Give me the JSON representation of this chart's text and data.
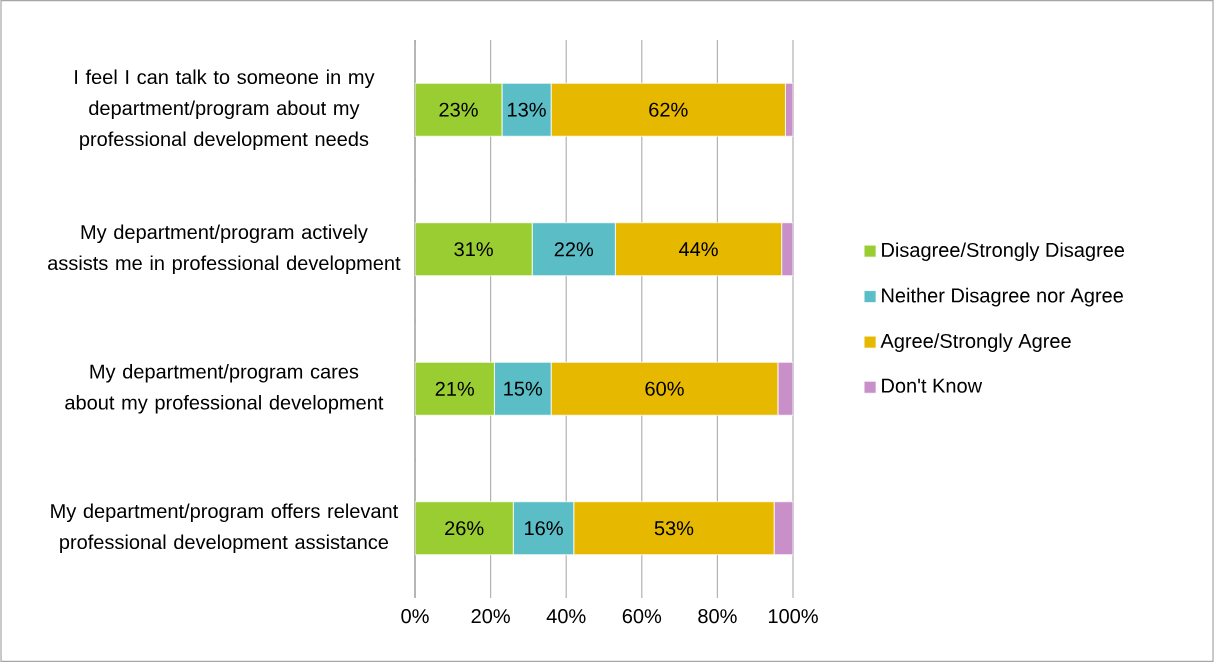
{
  "chart_data": {
    "type": "bar",
    "orientation": "horizontal",
    "stacked": true,
    "categories": [
      "I feel I can talk to someone in my department/program about my professional development needs",
      "My department/program actively assists me in professional development",
      "My department/program cares about my professional development",
      "My department/program offers relevant professional development assistance"
    ],
    "series": [
      {
        "name": "Disagree/Strongly Disagree",
        "color": "#9acd32",
        "values": [
          23,
          31,
          21,
          26
        ],
        "value_labels": [
          "23%",
          "31%",
          "21%",
          "26%"
        ]
      },
      {
        "name": "Neither Disagree nor Agree",
        "color": "#5bbdc6",
        "values": [
          13,
          22,
          15,
          16
        ],
        "value_labels": [
          "13%",
          "22%",
          "15%",
          "16%"
        ]
      },
      {
        "name": "Agree/Strongly Agree",
        "color": "#e6b800",
        "values": [
          62,
          44,
          60,
          53
        ],
        "value_labels": [
          "62%",
          "44%",
          "60%",
          "53%"
        ]
      },
      {
        "name": "Don't Know",
        "color": "#c98fc9",
        "values": [
          2,
          3,
          4,
          5
        ]
      }
    ],
    "xlim": [
      0,
      100
    ],
    "xticks": [
      {
        "value": 0,
        "label": "0%"
      },
      {
        "value": 20,
        "label": "20%"
      },
      {
        "value": 40,
        "label": "40%"
      },
      {
        "value": 60,
        "label": "60%"
      },
      {
        "value": 80,
        "label": "80%"
      },
      {
        "value": 100,
        "label": "100%"
      }
    ],
    "grid": "x",
    "legend": "right"
  }
}
